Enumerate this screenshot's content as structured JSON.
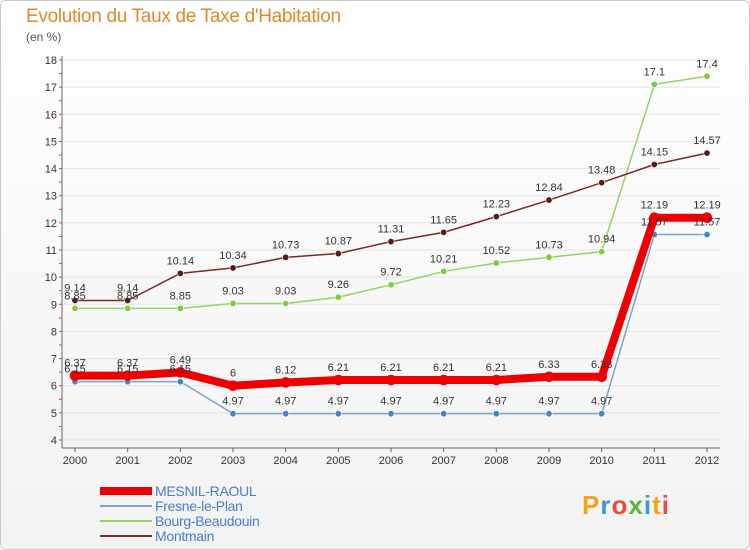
{
  "header": {
    "title": "Evolution du Taux de Taxe d'Habitation",
    "unit": "(en %)"
  },
  "brand": {
    "text": "Proxiti",
    "colors": [
      "#f3a21b",
      "#3a9bd9",
      "#e84c3d",
      "#5bb349",
      "#3a9bd9",
      "#f3a21b",
      "#e84c3d"
    ]
  },
  "chart_data": {
    "type": "line",
    "title": "Evolution du Taux de Taxe d'Habitation",
    "ylabel": "(en %)",
    "xlabel": "",
    "x": [
      "2000",
      "2001",
      "2002",
      "2003",
      "2004",
      "2005",
      "2006",
      "2007",
      "2008",
      "2009",
      "2010",
      "2011",
      "2012"
    ],
    "ylim": [
      4,
      18
    ],
    "yticks": [
      "4",
      "5",
      "6",
      "7",
      "8",
      "9",
      "10",
      "11",
      "12",
      "13",
      "14",
      "15",
      "16",
      "17",
      "18"
    ],
    "grid": "horizontal",
    "legend": "bottom-left",
    "series": [
      {
        "name": "MESNIL-RAOUL",
        "color": "#ee0000",
        "marker": "#ee0000",
        "width": 8,
        "values": [
          6.37,
          6.37,
          6.49,
          6,
          6.12,
          6.21,
          6.21,
          6.21,
          6.21,
          6.33,
          6.33,
          12.19,
          12.19
        ],
        "labels": [
          "6.37",
          "6.37",
          "6.49",
          "6",
          "6.12",
          "6.21",
          "6.21",
          "6.21",
          "6.21",
          "6.33",
          "6.33",
          "12.19",
          "12.19"
        ]
      },
      {
        "name": "Fresne-le-Plan",
        "color": "#7ca3c8",
        "marker": "#3f86c6",
        "width": 1.5,
        "values": [
          6.15,
          6.15,
          6.15,
          4.97,
          4.97,
          4.97,
          4.97,
          4.97,
          4.97,
          4.97,
          4.97,
          11.57,
          11.57
        ],
        "labels": [
          "6.15",
          "6.15",
          "6.15",
          "4.97",
          "4.97",
          "4.97",
          "4.97",
          "4.97",
          "4.97",
          "4.97",
          "4.97",
          "11.57",
          "11.57"
        ]
      },
      {
        "name": "Bourg-Beaudouin",
        "color": "#8fd66a",
        "marker": "#7ccd3a",
        "width": 1.5,
        "values": [
          8.85,
          8.85,
          8.85,
          9.03,
          9.03,
          9.26,
          9.72,
          10.21,
          10.52,
          10.73,
          10.94,
          17.1,
          17.4
        ],
        "labels": [
          "8.85",
          "8.85",
          "8.85",
          "9.03",
          "9.03",
          "9.26",
          "9.72",
          "10.21",
          "10.52",
          "10.73",
          "10.94",
          "17.1",
          "17.4"
        ]
      },
      {
        "name": "Montmain",
        "color": "#7a2a2a",
        "marker": "#5a1a1a",
        "width": 1.5,
        "values": [
          9.14,
          9.14,
          10.14,
          10.34,
          10.73,
          10.87,
          11.31,
          11.65,
          12.23,
          12.84,
          13.48,
          14.15,
          14.57
        ],
        "labels": [
          "9.14",
          "9.14",
          "10.14",
          "10.34",
          "10.73",
          "10.87",
          "11.31",
          "11.65",
          "12.23",
          "12.84",
          "13.48",
          "14.15",
          "14.57"
        ]
      }
    ]
  }
}
